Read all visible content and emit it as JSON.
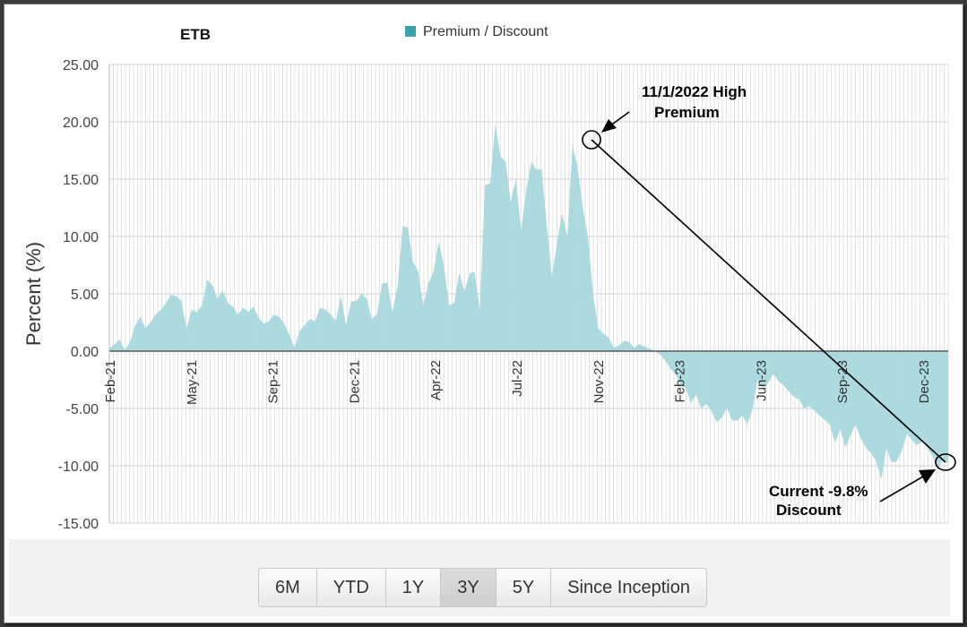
{
  "header": {
    "fund_label": "ETB",
    "legend_label": "Premium / Discount"
  },
  "annotations": {
    "high_line1": "11/1/2022 High",
    "high_line2": "Premium",
    "current_line1": "Current -9.8%",
    "current_line2": "Discount"
  },
  "range_buttons": [
    {
      "label": "6M",
      "active": false
    },
    {
      "label": "YTD",
      "active": false
    },
    {
      "label": "1Y",
      "active": false
    },
    {
      "label": "3Y",
      "active": true
    },
    {
      "label": "5Y",
      "active": false
    },
    {
      "label": "Since Inception",
      "active": false
    }
  ],
  "colors": {
    "area_fill": "#a8d8dd",
    "legend_swatch": "#3aa1ae",
    "grid": "#d8d8d8"
  },
  "chart_data": {
    "type": "area",
    "title": "ETB",
    "ylabel": "Percent (%)",
    "xlabel": "",
    "ylim": [
      -15,
      25
    ],
    "yticks": [
      "25.00",
      "20.00",
      "15.00",
      "10.00",
      "5.00",
      "0.00",
      "-5.00",
      "-10.00",
      "-15.00"
    ],
    "xticks": [
      "Feb-21",
      "May-21",
      "Sep-21",
      "Dec-21",
      "Apr-22",
      "Jul-22",
      "Nov-22",
      "Feb-23",
      "Jun-23",
      "Sep-23",
      "Dec-23"
    ],
    "legend_position": "top-center",
    "grid": true,
    "series": [
      {
        "name": "Premium / Discount",
        "values": [
          0.2,
          0.6,
          1.0,
          0.1,
          0.8,
          2.2,
          3.0,
          2.0,
          2.5,
          3.2,
          3.6,
          4.2,
          4.9,
          4.8,
          4.4,
          2.0,
          3.6,
          3.4,
          4.0,
          6.2,
          5.8,
          4.6,
          5.3,
          4.2,
          3.9,
          3.2,
          3.8,
          3.4,
          3.9,
          2.9,
          2.4,
          2.6,
          3.2,
          3.0,
          2.4,
          1.4,
          0.3,
          1.8,
          2.3,
          2.8,
          2.6,
          3.8,
          3.6,
          3.2,
          2.6,
          4.8,
          2.3,
          4.3,
          4.4,
          5.0,
          4.6,
          2.8,
          3.2,
          5.9,
          6.0,
          3.4,
          5.6,
          10.9,
          10.8,
          7.8,
          7.0,
          4.0,
          5.9,
          7.0,
          9.5,
          7.5,
          4.0,
          4.2,
          6.8,
          5.2,
          6.8,
          6.9,
          3.6,
          14.5,
          14.6,
          19.8,
          17.0,
          16.5,
          13.0,
          15.0,
          10.5,
          14.0,
          16.5,
          15.8,
          15.9,
          11.0,
          6.5,
          9.5,
          12.0,
          10.0,
          18.0,
          16.0,
          12.5,
          10.0,
          5.0,
          2.0,
          1.5,
          1.2,
          0.3,
          0.5,
          0.9,
          0.8,
          0.3,
          0.6,
          0.4,
          0.2,
          0.0,
          -0.3,
          -0.8,
          -1.5,
          -2.0,
          -3.0,
          -3.2,
          -4.5,
          -3.8,
          -5.0,
          -4.6,
          -5.2,
          -6.2,
          -5.8,
          -5.0,
          -6.0,
          -6.1,
          -5.6,
          -6.4,
          -5.0,
          -2.5,
          -3.2,
          -2.8,
          -2.0,
          -2.6,
          -3.0,
          -3.5,
          -4.0,
          -4.2,
          -5.0,
          -4.8,
          -5.2,
          -5.6,
          -6.0,
          -6.4,
          -8.0,
          -6.8,
          -8.4,
          -7.4,
          -6.4,
          -7.6,
          -8.4,
          -8.9,
          -9.6,
          -11.2,
          -8.5,
          -9.7,
          -9.6,
          -8.7,
          -7.2,
          -7.8,
          -8.2,
          -7.8,
          -8.5,
          -9.2,
          -10.3,
          -9.5,
          -9.8
        ]
      }
    ]
  }
}
